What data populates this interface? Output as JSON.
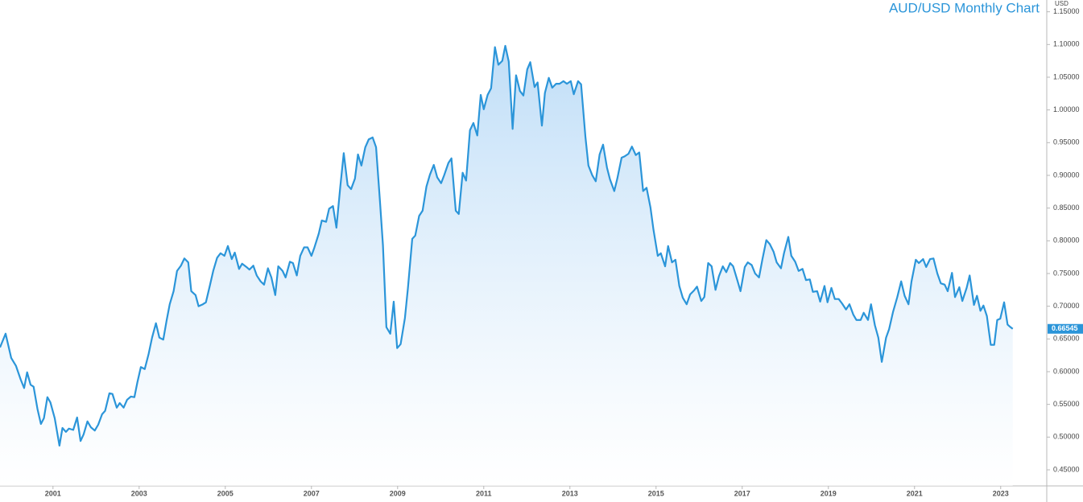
{
  "chart_data": {
    "type": "area",
    "title": "AUD/USD Monthly Chart",
    "ylabel": "USD",
    "color": "#2b95d9",
    "x": [
      1999.77,
      1999.9,
      2000.03,
      2000.14,
      2000.25,
      2000.33,
      2000.4,
      2000.48,
      2000.55,
      2000.64,
      2000.72,
      2000.79,
      2000.87,
      2000.94,
      2001.04,
      2001.15,
      2001.22,
      2001.3,
      2001.37,
      2001.47,
      2001.56,
      2001.64,
      2001.71,
      2001.8,
      2001.88,
      2001.97,
      2002.05,
      2002.14,
      2002.21,
      2002.31,
      2002.38,
      2002.48,
      2002.55,
      2002.64,
      2002.72,
      2002.81,
      2002.89,
      2002.96,
      2003.04,
      2003.13,
      2003.22,
      2003.3,
      2003.39,
      2003.47,
      2003.56,
      2003.64,
      2003.71,
      2003.8,
      2003.88,
      2003.97,
      2004.05,
      2004.14,
      2004.21,
      2004.31,
      2004.38,
      2004.48,
      2004.55,
      2004.64,
      2004.72,
      2004.81,
      2004.89,
      2004.98,
      2005.06,
      2005.15,
      2005.22,
      2005.32,
      2005.39,
      2005.49,
      2005.56,
      2005.65,
      2005.73,
      2005.82,
      2005.9,
      2005.99,
      2006.07,
      2006.16,
      2006.23,
      2006.33,
      2006.4,
      2006.5,
      2006.57,
      2006.66,
      2006.74,
      2006.83,
      2006.91,
      2007.0,
      2007.07,
      2007.17,
      2007.24,
      2007.34,
      2007.41,
      2007.5,
      2007.58,
      2007.67,
      2007.75,
      2007.84,
      2007.92,
      2008.01,
      2008.08,
      2008.16,
      2008.25,
      2008.33,
      2008.42,
      2008.5,
      2008.59,
      2008.66,
      2008.74,
      2008.83,
      2008.91,
      2008.99,
      2009.07,
      2009.17,
      2009.24,
      2009.34,
      2009.41,
      2009.5,
      2009.58,
      2009.67,
      2009.75,
      2009.84,
      2009.92,
      2010.01,
      2010.08,
      2010.18,
      2010.25,
      2010.35,
      2010.42,
      2010.51,
      2010.59,
      2010.68,
      2010.76,
      2010.85,
      2010.93,
      2011.0,
      2011.09,
      2011.17,
      2011.26,
      2011.34,
      2011.43,
      2011.5,
      2011.58,
      2011.67,
      2011.75,
      2011.84,
      2011.92,
      2012.01,
      2012.08,
      2012.18,
      2012.25,
      2012.35,
      2012.42,
      2012.51,
      2012.59,
      2012.68,
      2012.76,
      2012.85,
      2012.93,
      2013.02,
      2013.09,
      2013.19,
      2013.26,
      2013.36,
      2013.43,
      2013.52,
      2013.6,
      2013.69,
      2013.77,
      2013.86,
      2013.93,
      2014.03,
      2014.1,
      2014.2,
      2014.27,
      2014.36,
      2014.44,
      2014.53,
      2014.61,
      2014.7,
      2014.78,
      2014.87,
      2014.94,
      2015.04,
      2015.11,
      2015.21,
      2015.28,
      2015.37,
      2015.45,
      2015.54,
      2015.62,
      2015.71,
      2015.79,
      2015.88,
      2015.95,
      2016.05,
      2016.12,
      2016.21,
      2016.29,
      2016.38,
      2016.46,
      2016.55,
      2016.63,
      2016.72,
      2016.79,
      2016.89,
      2016.96,
      2017.06,
      2017.13,
      2017.22,
      2017.3,
      2017.39,
      2017.47,
      2017.56,
      2017.64,
      2017.73,
      2017.8,
      2017.9,
      2017.97,
      2018.07,
      2018.14,
      2018.23,
      2018.31,
      2018.4,
      2018.48,
      2018.57,
      2018.64,
      2018.74,
      2018.81,
      2018.91,
      2018.98,
      2019.07,
      2019.15,
      2019.24,
      2019.32,
      2019.41,
      2019.49,
      2019.58,
      2019.65,
      2019.75,
      2019.82,
      2019.92,
      2019.99,
      2020.08,
      2020.16,
      2020.24,
      2020.34,
      2020.41,
      2020.5,
      2020.6,
      2020.69,
      2020.77,
      2020.86,
      2020.93,
      2021.03,
      2021.1,
      2021.2,
      2021.27,
      2021.36,
      2021.44,
      2021.53,
      2021.61,
      2021.7,
      2021.77,
      2021.87,
      2021.94,
      2022.04,
      2022.11,
      2022.21,
      2022.28,
      2022.38,
      2022.45,
      2022.53,
      2022.6,
      2022.68,
      2022.77,
      2022.85,
      2022.92,
      2022.99,
      2023.08,
      2023.16,
      2023.21,
      2023.28
    ],
    "values": [
      0.637,
      0.658,
      0.621,
      0.609,
      0.588,
      0.575,
      0.599,
      0.58,
      0.577,
      0.543,
      0.52,
      0.529,
      0.561,
      0.553,
      0.529,
      0.487,
      0.514,
      0.508,
      0.513,
      0.511,
      0.53,
      0.494,
      0.504,
      0.524,
      0.515,
      0.51,
      0.519,
      0.535,
      0.54,
      0.567,
      0.566,
      0.545,
      0.552,
      0.545,
      0.557,
      0.562,
      0.561,
      0.584,
      0.607,
      0.604,
      0.627,
      0.652,
      0.674,
      0.652,
      0.649,
      0.679,
      0.703,
      0.723,
      0.754,
      0.762,
      0.773,
      0.767,
      0.723,
      0.717,
      0.7,
      0.703,
      0.706,
      0.731,
      0.754,
      0.774,
      0.781,
      0.777,
      0.792,
      0.772,
      0.782,
      0.757,
      0.765,
      0.76,
      0.756,
      0.762,
      0.747,
      0.738,
      0.733,
      0.758,
      0.744,
      0.717,
      0.761,
      0.754,
      0.744,
      0.768,
      0.766,
      0.747,
      0.777,
      0.79,
      0.79,
      0.777,
      0.79,
      0.811,
      0.831,
      0.829,
      0.849,
      0.853,
      0.82,
      0.883,
      0.934,
      0.885,
      0.879,
      0.895,
      0.932,
      0.915,
      0.943,
      0.955,
      0.958,
      0.943,
      0.861,
      0.793,
      0.668,
      0.658,
      0.707,
      0.636,
      0.642,
      0.682,
      0.728,
      0.803,
      0.808,
      0.838,
      0.846,
      0.883,
      0.901,
      0.916,
      0.897,
      0.888,
      0.9,
      0.919,
      0.926,
      0.846,
      0.841,
      0.904,
      0.892,
      0.969,
      0.98,
      0.961,
      1.023,
      1.001,
      1.023,
      1.033,
      1.096,
      1.069,
      1.075,
      1.098,
      1.074,
      0.971,
      1.053,
      1.029,
      1.022,
      1.062,
      1.073,
      1.035,
      1.042,
      0.976,
      1.026,
      1.049,
      1.034,
      1.04,
      1.04,
      1.044,
      1.04,
      1.044,
      1.024,
      1.044,
      1.039,
      0.959,
      0.915,
      0.9,
      0.891,
      0.932,
      0.947,
      0.912,
      0.894,
      0.876,
      0.895,
      0.927,
      0.929,
      0.933,
      0.944,
      0.931,
      0.935,
      0.876,
      0.881,
      0.851,
      0.817,
      0.777,
      0.781,
      0.761,
      0.792,
      0.767,
      0.771,
      0.731,
      0.713,
      0.703,
      0.718,
      0.724,
      0.73,
      0.708,
      0.714,
      0.766,
      0.761,
      0.725,
      0.746,
      0.761,
      0.752,
      0.766,
      0.761,
      0.739,
      0.723,
      0.76,
      0.767,
      0.763,
      0.75,
      0.744,
      0.772,
      0.801,
      0.795,
      0.783,
      0.767,
      0.758,
      0.781,
      0.806,
      0.777,
      0.768,
      0.754,
      0.757,
      0.74,
      0.741,
      0.722,
      0.723,
      0.707,
      0.731,
      0.706,
      0.728,
      0.711,
      0.711,
      0.704,
      0.695,
      0.703,
      0.687,
      0.679,
      0.679,
      0.69,
      0.679,
      0.703,
      0.671,
      0.652,
      0.615,
      0.652,
      0.665,
      0.691,
      0.714,
      0.738,
      0.716,
      0.703,
      0.738,
      0.771,
      0.766,
      0.772,
      0.76,
      0.772,
      0.773,
      0.75,
      0.735,
      0.733,
      0.723,
      0.751,
      0.714,
      0.729,
      0.708,
      0.728,
      0.747,
      0.702,
      0.716,
      0.693,
      0.701,
      0.685,
      0.641,
      0.641,
      0.679,
      0.681,
      0.706,
      0.672,
      0.669,
      0.66545
    ],
    "xlim": [
      1999.77,
      2024.07
    ],
    "ylim": [
      0.4254,
      1.168
    ],
    "xticks": [
      2001,
      2003,
      2005,
      2007,
      2009,
      2011,
      2013,
      2015,
      2017,
      2019,
      2021,
      2023
    ],
    "yticks": [
      {
        "value": 0.45,
        "label": "0.45000"
      },
      {
        "value": 0.5,
        "label": "0.50000"
      },
      {
        "value": 0.55,
        "label": "0.55000"
      },
      {
        "value": 0.6,
        "label": "0.60000"
      },
      {
        "value": 0.65,
        "label": "0.65000"
      },
      {
        "value": 0.7,
        "label": "0.70000"
      },
      {
        "value": 0.75,
        "label": "0.75000"
      },
      {
        "value": 0.8,
        "label": "0.80000"
      },
      {
        "value": 0.85,
        "label": "0.85000"
      },
      {
        "value": 0.9,
        "label": "0.90000"
      },
      {
        "value": 0.95,
        "label": "0.95000"
      },
      {
        "value": 1.0,
        "label": "1.00000"
      },
      {
        "value": 1.05,
        "label": "1.05000"
      },
      {
        "value": 1.1,
        "label": "1.10000"
      },
      {
        "value": 1.15,
        "label": "1.15000"
      }
    ],
    "grid": false
  }
}
